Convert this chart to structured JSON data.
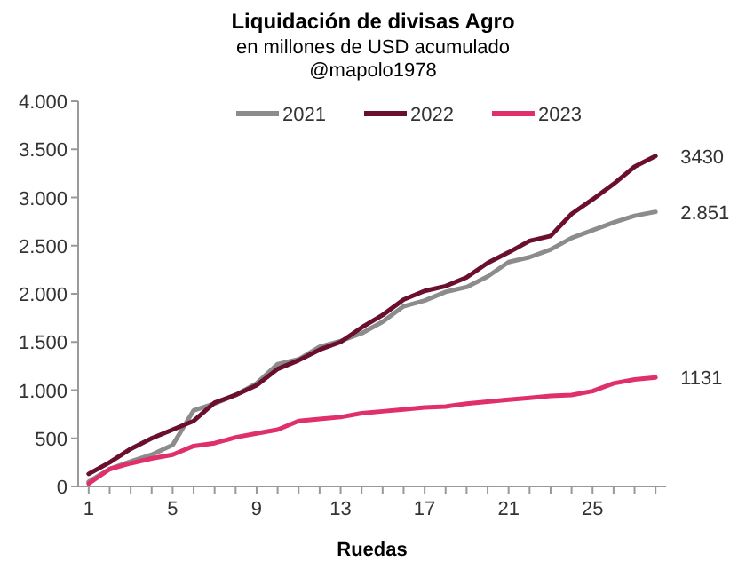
{
  "chart_data": {
    "type": "line",
    "title": "Liquidación de divisas Agro",
    "subtitle": "en millones de USD acumulado\n@mapolo1978",
    "xlabel": "Ruedas",
    "x": [
      1,
      2,
      3,
      4,
      5,
      6,
      7,
      8,
      9,
      10,
      11,
      12,
      13,
      14,
      15,
      16,
      17,
      18,
      19,
      20,
      21,
      22,
      23,
      24,
      25,
      26,
      27,
      28
    ],
    "series": [
      {
        "name": "2021",
        "color": "#8c8c8c",
        "values": [
          50,
          180,
          260,
          330,
          430,
          790,
          860,
          950,
          1070,
          1270,
          1320,
          1450,
          1510,
          1590,
          1710,
          1870,
          1930,
          2020,
          2070,
          2180,
          2330,
          2380,
          2460,
          2580,
          2660,
          2740,
          2810,
          2851
        ],
        "value_labels": [
          null,
          null,
          null,
          null,
          null,
          null,
          null,
          null,
          null,
          null,
          null,
          null,
          null,
          null,
          null,
          null,
          null,
          null,
          null,
          null,
          null,
          null,
          null,
          null,
          null,
          null,
          null,
          "2.851"
        ]
      },
      {
        "name": "2022",
        "color": "#6b0f2f",
        "values": [
          130,
          250,
          390,
          500,
          590,
          680,
          870,
          950,
          1050,
          1220,
          1310,
          1420,
          1500,
          1650,
          1780,
          1940,
          2030,
          2080,
          2170,
          2320,
          2430,
          2550,
          2600,
          2830,
          2980,
          3140,
          3320,
          3430
        ],
        "value_labels": [
          null,
          null,
          null,
          null,
          null,
          null,
          null,
          null,
          null,
          null,
          null,
          null,
          null,
          null,
          null,
          null,
          null,
          null,
          null,
          null,
          null,
          null,
          null,
          null,
          null,
          null,
          null,
          "3430"
        ]
      },
      {
        "name": "2023",
        "color": "#e0306a",
        "values": [
          30,
          180,
          240,
          290,
          330,
          420,
          450,
          510,
          550,
          590,
          680,
          700,
          720,
          760,
          780,
          800,
          820,
          830,
          860,
          880,
          900,
          920,
          940,
          950,
          990,
          1070,
          1110,
          1131
        ],
        "value_labels": [
          null,
          null,
          null,
          null,
          null,
          null,
          null,
          null,
          null,
          null,
          null,
          null,
          null,
          null,
          null,
          null,
          null,
          null,
          null,
          null,
          null,
          null,
          null,
          null,
          null,
          null,
          null,
          "1131"
        ]
      }
    ],
    "xlim": [
      0.5,
      28.5
    ],
    "ylim": [
      0,
      4000
    ],
    "xticks": [
      1,
      {
        "value": 2,
        "label": null
      },
      {
        "value": 3,
        "label": null
      },
      {
        "value": 4,
        "label": null
      },
      5,
      {
        "value": 6,
        "label": null
      },
      {
        "value": 7,
        "label": null
      },
      {
        "value": 8,
        "label": null
      },
      9,
      {
        "value": 10,
        "label": null
      },
      {
        "value": 11,
        "label": null
      },
      {
        "value": 12,
        "label": null
      },
      13,
      {
        "value": 14,
        "label": null
      },
      {
        "value": 15,
        "label": null
      },
      {
        "value": 16,
        "label": null
      },
      17,
      {
        "value": 18,
        "label": null
      },
      {
        "value": 19,
        "label": null
      },
      {
        "value": 20,
        "label": null
      },
      21,
      {
        "value": 22,
        "label": null
      },
      {
        "value": 23,
        "label": null
      },
      {
        "value": 24,
        "label": null
      },
      25,
      {
        "value": 26,
        "label": null
      },
      {
        "value": 27,
        "label": null
      },
      {
        "value": 28,
        "label": null
      }
    ],
    "yticks": [
      {
        "value": 0,
        "label": "0"
      },
      {
        "value": 500,
        "label": "500"
      },
      {
        "value": 1000,
        "label": "1.000"
      },
      {
        "value": 1500,
        "label": "1.500"
      },
      {
        "value": 2000,
        "label": "2.000"
      },
      {
        "value": 2500,
        "label": "2.500"
      },
      {
        "value": 3000,
        "label": "3.000"
      },
      {
        "value": 3500,
        "label": "3.500"
      },
      {
        "value": 4000,
        "label": "4.000"
      }
    ],
    "legend": "top",
    "grid": false,
    "marker": "none",
    "line_style": "solid"
  }
}
